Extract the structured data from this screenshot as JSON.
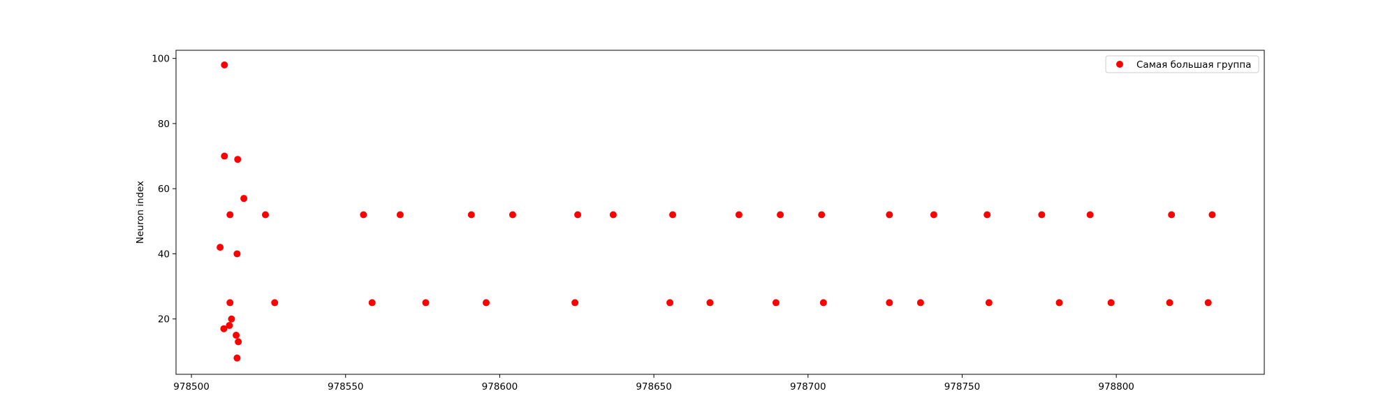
{
  "chart_data": {
    "type": "scatter",
    "title": "",
    "xlabel": "",
    "ylabel": "Neuron index",
    "xlim": [
      978495,
      978848
    ],
    "ylim": [
      3,
      102.5
    ],
    "xticks": [
      978500,
      978550,
      978600,
      978650,
      978700,
      978750,
      978800
    ],
    "yticks": [
      20,
      40,
      60,
      80,
      100
    ],
    "grid": false,
    "legend_position": "top-right",
    "series": [
      {
        "name": "Самая большая группа",
        "color": "#ff0000",
        "points": [
          [
            978510.7,
            98
          ],
          [
            978510.7,
            70
          ],
          [
            978515.0,
            69
          ],
          [
            978517.0,
            57
          ],
          [
            978509.3,
            42
          ],
          [
            978514.8,
            40
          ],
          [
            978512.5,
            52
          ],
          [
            978524.0,
            52
          ],
          [
            978512.5,
            25
          ],
          [
            978513.0,
            20
          ],
          [
            978512.3,
            18
          ],
          [
            978510.5,
            17
          ],
          [
            978514.5,
            15
          ],
          [
            978515.2,
            13
          ],
          [
            978514.8,
            8
          ],
          [
            978527.0,
            25
          ],
          [
            978555.8,
            52
          ],
          [
            978567.7,
            52
          ],
          [
            978590.8,
            52
          ],
          [
            978604.2,
            52
          ],
          [
            978625.3,
            52
          ],
          [
            978636.8,
            52
          ],
          [
            978656.1,
            52
          ],
          [
            978677.6,
            52
          ],
          [
            978691.0,
            52
          ],
          [
            978704.4,
            52
          ],
          [
            978726.4,
            52
          ],
          [
            978740.8,
            52
          ],
          [
            978758.1,
            52
          ],
          [
            978775.8,
            52
          ],
          [
            978791.5,
            52
          ],
          [
            978817.9,
            52
          ],
          [
            978831.1,
            52
          ],
          [
            978558.6,
            25
          ],
          [
            978576.0,
            25
          ],
          [
            978595.6,
            25
          ],
          [
            978624.4,
            25
          ],
          [
            978655.2,
            25
          ],
          [
            978668.2,
            25
          ],
          [
            978689.6,
            25
          ],
          [
            978705.0,
            25
          ],
          [
            978726.4,
            25
          ],
          [
            978736.5,
            25
          ],
          [
            978758.7,
            25
          ],
          [
            978781.5,
            25
          ],
          [
            978798.3,
            25
          ],
          [
            978817.3,
            25
          ],
          [
            978829.8,
            25
          ]
        ]
      }
    ]
  }
}
